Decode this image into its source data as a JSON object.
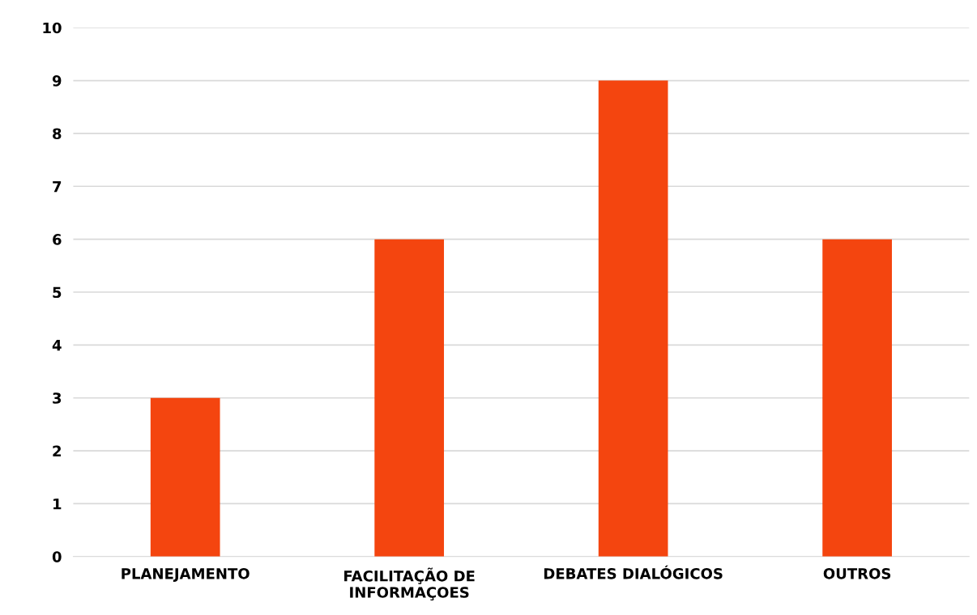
{
  "chart_data": {
    "type": "bar",
    "categories": [
      "PLANEJAMENTO",
      "FACILITAÇÃO DE\nINFORMAÇOES",
      "DEBATES DIALÓGICOS",
      "OUTROS"
    ],
    "values": [
      3,
      6,
      9,
      6
    ],
    "color": "#f4450f",
    "ylim": [
      0,
      10
    ],
    "yticks": [
      0,
      1,
      2,
      3,
      4,
      5,
      6,
      7,
      8,
      9,
      10
    ],
    "grid": "y"
  }
}
